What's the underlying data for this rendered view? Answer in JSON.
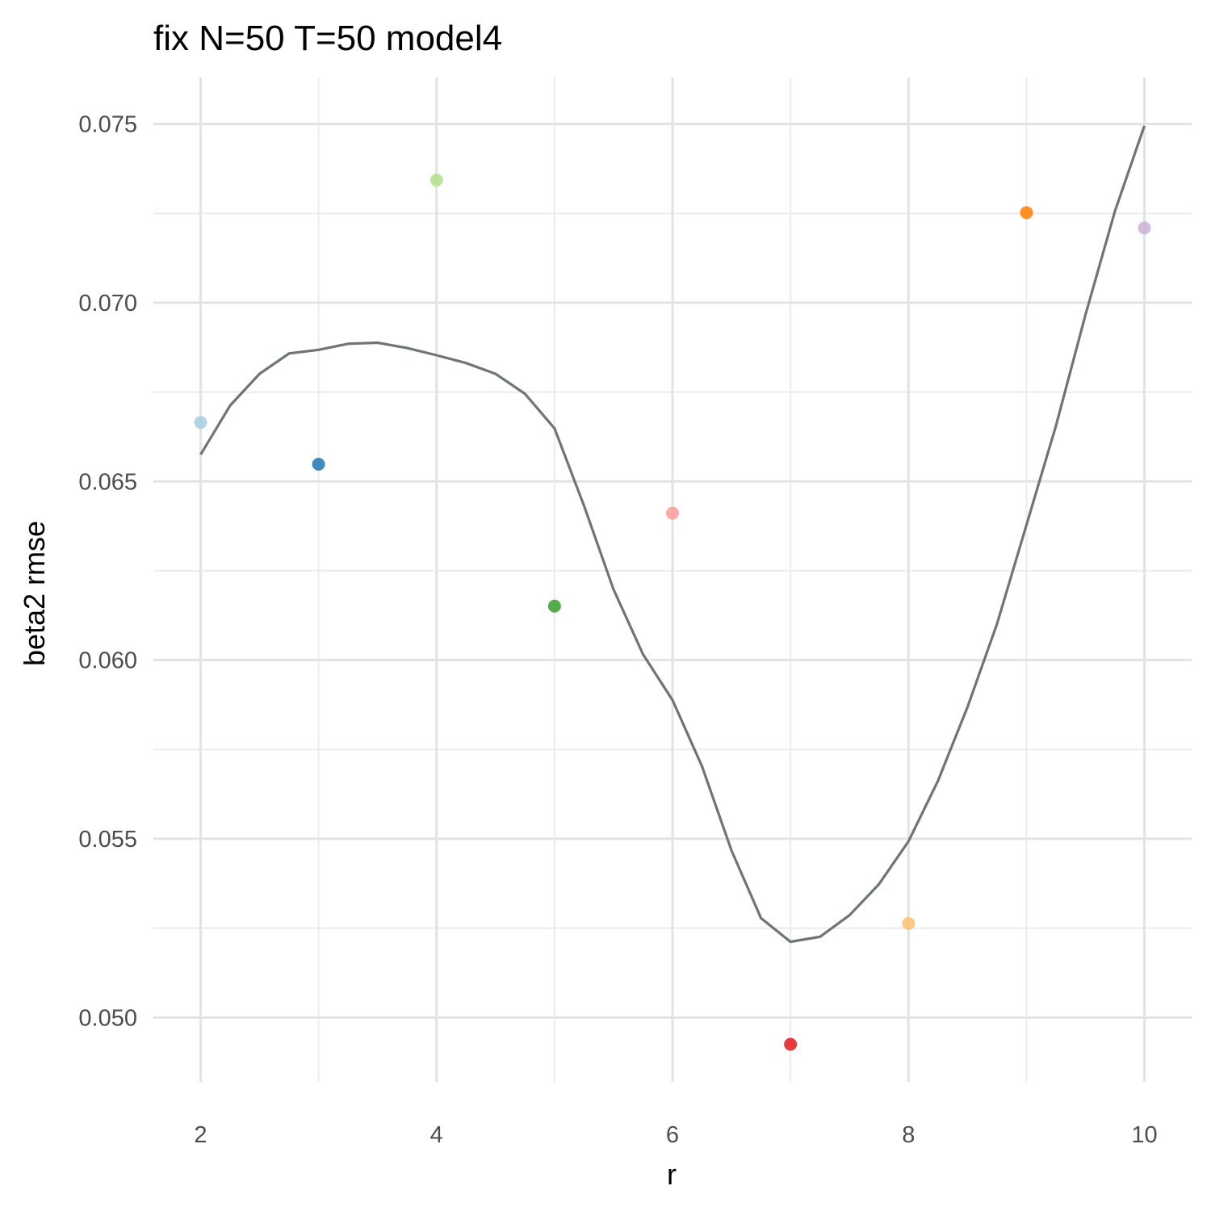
{
  "chart_data": {
    "type": "scatter",
    "title": "fix N=50 T=50 model4",
    "xlabel": "r",
    "ylabel": "beta2 rmse",
    "xlim": [
      1.6,
      10.4
    ],
    "ylim": [
      0.0482,
      0.0763
    ],
    "x_ticks": [
      2,
      4,
      6,
      8,
      10
    ],
    "x_tick_labels": [
      "2",
      "4",
      "6",
      "8",
      "10"
    ],
    "y_ticks": [
      0.05,
      0.055,
      0.06,
      0.065,
      0.07,
      0.075
    ],
    "y_tick_labels": [
      "0.050",
      "0.055",
      "0.060",
      "0.065",
      "0.070",
      "0.075"
    ],
    "grid": true,
    "legend": "none",
    "points": [
      {
        "x": 2,
        "y": 0.06665,
        "color": "#a6cee3"
      },
      {
        "x": 3,
        "y": 0.06548,
        "color": "#1f78b4"
      },
      {
        "x": 4,
        "y": 0.07343,
        "color": "#b2df8a"
      },
      {
        "x": 5,
        "y": 0.06151,
        "color": "#33a02c"
      },
      {
        "x": 6,
        "y": 0.06411,
        "color": "#fb9a99"
      },
      {
        "x": 7,
        "y": 0.04925,
        "color": "#e31a1c"
      },
      {
        "x": 8,
        "y": 0.05263,
        "color": "#fdbf6f"
      },
      {
        "x": 9,
        "y": 0.07252,
        "color": "#ff7f00"
      },
      {
        "x": 10,
        "y": 0.07209,
        "color": "#cab2d6"
      }
    ],
    "smooth_line": {
      "color": "#6e7573",
      "x": [
        2,
        2.25,
        2.5,
        2.75,
        3,
        3.25,
        3.5,
        3.75,
        4,
        4.25,
        4.5,
        4.75,
        5,
        5.25,
        5.5,
        5.75,
        6,
        6.25,
        6.5,
        6.75,
        7,
        7.25,
        7.5,
        7.75,
        8,
        8.25,
        8.5,
        8.75,
        9,
        9.25,
        9.5,
        9.75,
        10
      ],
      "y": [
        0.06575,
        0.06712,
        0.06801,
        0.06858,
        0.06868,
        0.06885,
        0.06888,
        0.06873,
        0.06853,
        0.06831,
        0.06801,
        0.06745,
        0.06648,
        0.06432,
        0.06198,
        0.06016,
        0.05888,
        0.05703,
        0.05467,
        0.05278,
        0.05212,
        0.05226,
        0.05286,
        0.05373,
        0.05493,
        0.05662,
        0.05868,
        0.06101,
        0.06378,
        0.06655,
        0.06966,
        0.07256,
        0.07495
      ]
    }
  }
}
